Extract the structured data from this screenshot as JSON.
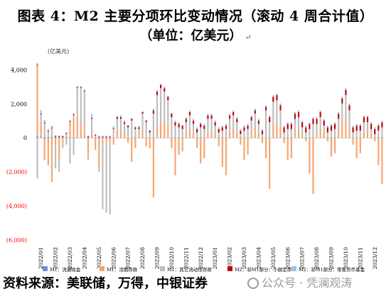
{
  "title_line1": "图表 4：M2 主要分项环比变动情况（滚动 4 周合计值）",
  "title_line2": "（单位：亿美元）",
  "title_mark": "↵",
  "source": "资料来源：美联储，万得，中银证券",
  "watermark": "公众号 · 凭澜观涛",
  "chart_data": {
    "type": "bar",
    "stacked": true,
    "unit_label": "(亿美元)",
    "ylim": [
      -6000,
      4600
    ],
    "yticks": [
      -6000,
      -4000,
      -2000,
      0,
      2000,
      4000
    ],
    "ytick_labels": [
      "(6,000)",
      "(4,000)",
      "(2,000)",
      "0",
      "2,000",
      "4,000"
    ],
    "negative_tick_color": "#ff0000",
    "x_labels": [
      "2022/01",
      "2022/02",
      "2022/03",
      "2022/04",
      "2022/05",
      "2022/06",
      "2022/07",
      "2022/08",
      "2022/09",
      "2022/10",
      "2022/11",
      "2022/12",
      "2023/01",
      "2023/02",
      "2023/03",
      "2023/04",
      "2023/05",
      "2023/06",
      "2023/07",
      "2023/08",
      "2023/09",
      "2023/10",
      "2023/11",
      "2023/12"
    ],
    "weeks_per_label": 4,
    "series": [
      {
        "name": "M1：流通现金",
        "color": "#6f8fcf"
      },
      {
        "name": "M1：活期存款",
        "color": "#f4a56f"
      },
      {
        "name": "M1：其它流动性存款",
        "color": "#bdbdbd"
      },
      {
        "name": "M2：非M1部分：小额定存",
        "color": "#c00000"
      },
      {
        "name": "M2：非M1部分：零售货币基金",
        "color": "#9dc3e6"
      }
    ],
    "legend_position": "bottom",
    "grid": false,
    "values": [
      [
        150,
        4100,
        -2400,
        50,
        100
      ],
      [
        80,
        900,
        400,
        50,
        200
      ],
      [
        60,
        -1300,
        800,
        50,
        150
      ],
      [
        60,
        -1600,
        300,
        50,
        100
      ],
      [
        60,
        -2600,
        500,
        50,
        100
      ],
      [
        60,
        -400,
        -1400,
        50,
        50
      ],
      [
        50,
        -1200,
        -800,
        50,
        50
      ],
      [
        50,
        -300,
        -300,
        50,
        50
      ],
      [
        40,
        200,
        -400,
        50,
        50
      ],
      [
        40,
        900,
        -1500,
        50,
        50
      ],
      [
        40,
        1300,
        -1000,
        50,
        50
      ],
      [
        40,
        1200,
        1700,
        50,
        50
      ],
      [
        40,
        800,
        2100,
        50,
        50
      ],
      [
        40,
        400,
        2300,
        50,
        50
      ],
      [
        40,
        -1000,
        -300,
        50,
        50
      ],
      [
        30,
        300,
        800,
        50,
        200
      ],
      [
        30,
        -700,
        100,
        50,
        50
      ],
      [
        30,
        -1800,
        -200,
        50,
        50
      ],
      [
        30,
        -400,
        -3800,
        50,
        50
      ],
      [
        30,
        -300,
        -4100,
        50,
        50
      ],
      [
        30,
        -200,
        -4300,
        50,
        50
      ],
      [
        20,
        -400,
        500,
        50,
        100
      ],
      [
        20,
        500,
        600,
        100,
        100
      ],
      [
        20,
        400,
        700,
        100,
        100
      ],
      [
        20,
        300,
        500,
        100,
        100
      ],
      [
        20,
        -300,
        600,
        100,
        50
      ],
      [
        20,
        -1400,
        1000,
        100,
        50
      ],
      [
        20,
        -600,
        500,
        100,
        50
      ],
      [
        20,
        200,
        300,
        100,
        100
      ],
      [
        20,
        400,
        1000,
        100,
        50
      ],
      [
        20,
        -500,
        900,
        100,
        50
      ],
      [
        20,
        -600,
        300,
        100,
        50
      ],
      [
        20,
        -3500,
        1400,
        200,
        100
      ],
      [
        20,
        600,
        1900,
        200,
        100
      ],
      [
        20,
        900,
        2000,
        200,
        50
      ],
      [
        20,
        1000,
        1700,
        200,
        100
      ],
      [
        20,
        700,
        1500,
        200,
        50
      ],
      [
        20,
        -600,
        1200,
        200,
        50
      ],
      [
        20,
        -2200,
        700,
        200,
        100
      ],
      [
        20,
        -1000,
        600,
        200,
        100
      ],
      [
        20,
        -800,
        500,
        200,
        50
      ],
      [
        20,
        300,
        600,
        200,
        100
      ],
      [
        20,
        500,
        800,
        200,
        100
      ],
      [
        20,
        300,
        500,
        200,
        100
      ],
      [
        20,
        -600,
        300,
        200,
        100
      ],
      [
        20,
        -1500,
        600,
        200,
        100
      ],
      [
        20,
        -1200,
        500,
        200,
        100
      ],
      [
        20,
        300,
        800,
        200,
        100
      ],
      [
        20,
        400,
        700,
        200,
        100
      ],
      [
        20,
        200,
        500,
        200,
        100
      ],
      [
        20,
        -500,
        300,
        200,
        100
      ],
      [
        20,
        -1700,
        400,
        200,
        100
      ],
      [
        20,
        -2200,
        500,
        200,
        100
      ],
      [
        20,
        400,
        700,
        200,
        100
      ],
      [
        20,
        500,
        800,
        200,
        100
      ],
      [
        20,
        300,
        600,
        200,
        100
      ],
      [
        20,
        -400,
        200,
        200,
        100
      ],
      [
        20,
        -1300,
        400,
        200,
        100
      ],
      [
        20,
        -1000,
        500,
        200,
        100
      ],
      [
        20,
        300,
        700,
        200,
        100
      ],
      [
        20,
        600,
        800,
        200,
        100
      ],
      [
        20,
        300,
        500,
        200,
        100
      ],
      [
        20,
        -300,
        200,
        200,
        100
      ],
      [
        20,
        -1200,
        1600,
        200,
        100
      ],
      [
        20,
        -3000,
        900,
        300,
        100
      ],
      [
        20,
        800,
        1300,
        300,
        100
      ],
      [
        20,
        900,
        1300,
        300,
        100
      ],
      [
        20,
        600,
        1000,
        300,
        100
      ],
      [
        20,
        -300,
        300,
        300,
        100
      ],
      [
        20,
        -1300,
        500,
        300,
        100
      ],
      [
        20,
        -1200,
        500,
        300,
        100
      ],
      [
        20,
        400,
        700,
        300,
        100
      ],
      [
        20,
        500,
        700,
        300,
        100
      ],
      [
        20,
        200,
        400,
        300,
        100
      ],
      [
        20,
        -200,
        300,
        300,
        100
      ],
      [
        20,
        -2100,
        500,
        300,
        100
      ],
      [
        20,
        -3300,
        800,
        300,
        100
      ],
      [
        20,
        300,
        500,
        300,
        100
      ],
      [
        20,
        500,
        700,
        300,
        100
      ],
      [
        20,
        300,
        400,
        300,
        100
      ],
      [
        20,
        -200,
        300,
        300,
        100
      ],
      [
        20,
        -1100,
        400,
        300,
        100
      ],
      [
        20,
        -900,
        500,
        300,
        100
      ],
      [
        20,
        400,
        700,
        300,
        100
      ],
      [
        20,
        900,
        1100,
        300,
        100
      ],
      [
        20,
        1200,
        1300,
        300,
        100
      ],
      [
        20,
        600,
        1000,
        300,
        100
      ],
      [
        20,
        -400,
        300,
        300,
        100
      ],
      [
        20,
        -1200,
        400,
        300,
        100
      ],
      [
        20,
        -900,
        400,
        300,
        100
      ],
      [
        20,
        300,
        600,
        300,
        100
      ],
      [
        20,
        400,
        500,
        300,
        100
      ],
      [
        20,
        200,
        300,
        300,
        100
      ],
      [
        20,
        -200,
        200,
        300,
        100
      ],
      [
        20,
        -1600,
        400,
        300,
        100
      ],
      [
        20,
        -2700,
        600,
        300,
        100
      ]
    ]
  }
}
